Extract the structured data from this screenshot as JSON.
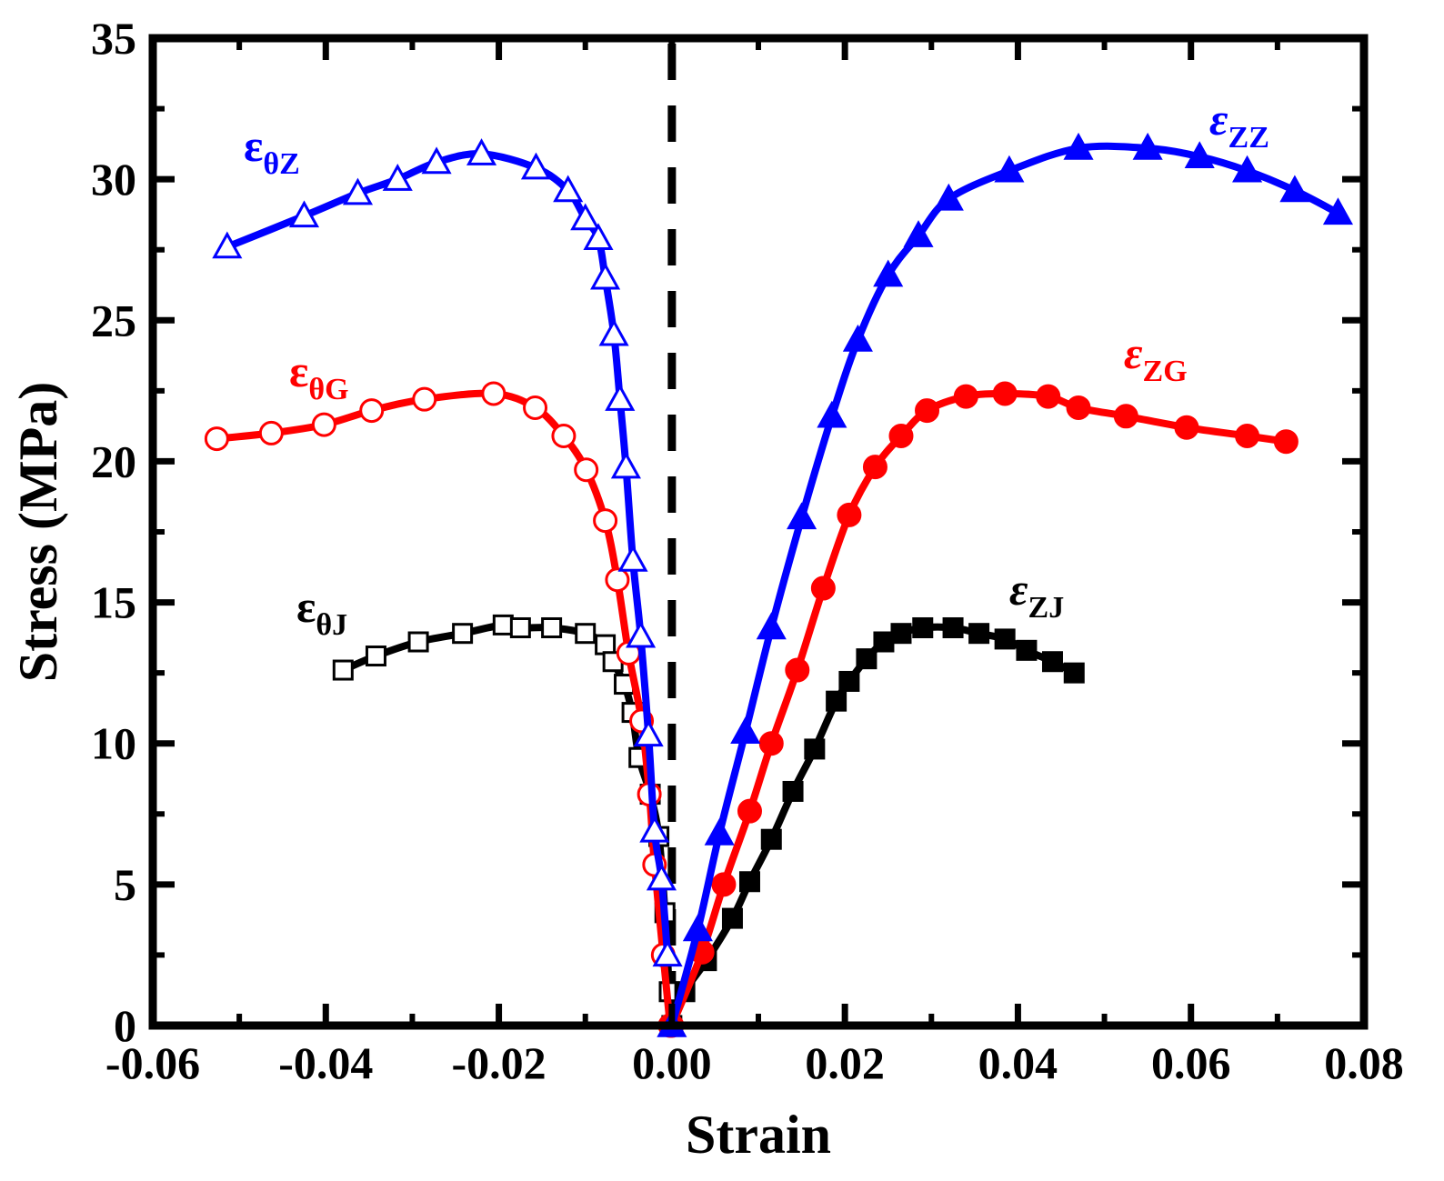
{
  "chart_data": {
    "type": "line",
    "title": "",
    "xlabel": "Strain",
    "ylabel": "Stress (MPa)",
    "xlim": [
      -0.06,
      0.08
    ],
    "ylim": [
      0,
      35
    ],
    "xticks": [
      "-0.06",
      "-0.04",
      "-0.02",
      "0.00",
      "0.02",
      "0.04",
      "0.06",
      "0.08"
    ],
    "yticks": [
      "0",
      "5",
      "10",
      "15",
      "20",
      "25",
      "30",
      "35"
    ],
    "grid": false,
    "reference_line": {
      "x": 0,
      "style": "dashed",
      "color": "#000000"
    },
    "series": [
      {
        "name": "εθZ",
        "label_main": "ε",
        "label_sub": "θZ",
        "color": "#0000ff",
        "marker": "triangle",
        "filled": false,
        "x": [
          -0.0514,
          -0.0425,
          -0.0363,
          -0.0317,
          -0.0272,
          -0.022,
          -0.0157,
          -0.012,
          -0.01,
          -0.0085,
          -0.0077,
          -0.0067,
          -0.006,
          -0.0053,
          -0.0045,
          -0.0036,
          -0.0027,
          -0.002,
          -0.0012,
          -0.0005
        ],
        "y": [
          27.6,
          28.7,
          29.5,
          30.0,
          30.6,
          30.9,
          30.4,
          29.6,
          28.6,
          27.9,
          26.5,
          24.5,
          22.2,
          19.8,
          16.5,
          13.8,
          10.3,
          6.9,
          5.2,
          2.5
        ]
      },
      {
        "name": "εθG",
        "label_main": "ε",
        "label_sub": "θG",
        "color": "#ff0000",
        "marker": "circle",
        "filled": false,
        "x": [
          -0.0526,
          -0.0463,
          -0.0402,
          -0.0347,
          -0.0286,
          -0.0206,
          -0.0158,
          -0.0125,
          -0.0099,
          -0.0077,
          -0.0063,
          -0.005,
          -0.0035,
          -0.0026,
          -0.002,
          -0.001,
          -0.0002
        ],
        "y": [
          20.8,
          21.0,
          21.3,
          21.8,
          22.2,
          22.4,
          21.9,
          20.9,
          19.7,
          17.9,
          15.8,
          13.2,
          10.8,
          8.2,
          5.7,
          2.5,
          0.0
        ]
      },
      {
        "name": "εθJ",
        "label_main": "ε",
        "label_sub": "θJ",
        "color": "#000000",
        "marker": "square",
        "filled": false,
        "x": [
          -0.038,
          -0.0342,
          -0.0293,
          -0.0242,
          -0.0195,
          -0.0175,
          -0.0139,
          -0.01,
          -0.0077,
          -0.0068,
          -0.0055,
          -0.0046,
          -0.0038,
          -0.0025,
          -0.0015,
          -0.0008,
          -0.0003
        ],
        "y": [
          12.6,
          13.1,
          13.6,
          13.9,
          14.2,
          14.1,
          14.1,
          13.9,
          13.5,
          12.9,
          12.1,
          11.1,
          9.5,
          8.2,
          6.7,
          4.0,
          1.2
        ]
      },
      {
        "name": "εZZ",
        "label_main": "ε",
        "label_sub": "ZZ",
        "color": "#0000ff",
        "marker": "triangle",
        "filled": true,
        "x": [
          0.0,
          0.003,
          0.0055,
          0.0085,
          0.0115,
          0.015,
          0.0185,
          0.0215,
          0.025,
          0.0285,
          0.032,
          0.039,
          0.047,
          0.055,
          0.061,
          0.0665,
          0.072,
          0.077
        ],
        "y": [
          0.0,
          3.4,
          6.8,
          10.4,
          14.1,
          18.0,
          21.6,
          24.3,
          26.6,
          28.0,
          29.3,
          30.3,
          31.1,
          31.1,
          30.8,
          30.3,
          29.6,
          28.8
        ]
      },
      {
        "name": "εZG",
        "label_main": "ε",
        "label_sub": "ZG",
        "color": "#ff0000",
        "marker": "circle",
        "filled": true,
        "x": [
          0.0,
          0.0035,
          0.006,
          0.009,
          0.0115,
          0.0145,
          0.0175,
          0.0205,
          0.0235,
          0.0265,
          0.0295,
          0.034,
          0.0385,
          0.0435,
          0.047,
          0.0525,
          0.0595,
          0.0665,
          0.071
        ],
        "y": [
          0.0,
          2.6,
          5.0,
          7.6,
          10.0,
          12.6,
          15.5,
          18.1,
          19.8,
          20.9,
          21.8,
          22.3,
          22.4,
          22.3,
          21.9,
          21.6,
          21.2,
          20.9,
          20.7
        ]
      },
      {
        "name": "εZJ",
        "label_main": "ε",
        "label_sub": "ZJ",
        "color": "#000000",
        "marker": "square",
        "filled": true,
        "x": [
          0.0,
          0.0015,
          0.004,
          0.007,
          0.009,
          0.0115,
          0.014,
          0.0165,
          0.019,
          0.0205,
          0.0225,
          0.0245,
          0.0265,
          0.029,
          0.0325,
          0.0355,
          0.0385,
          0.041,
          0.044,
          0.0465
        ],
        "y": [
          0.0,
          1.2,
          2.3,
          3.8,
          5.1,
          6.6,
          8.3,
          9.8,
          11.5,
          12.2,
          13.0,
          13.6,
          13.9,
          14.1,
          14.1,
          13.9,
          13.7,
          13.3,
          12.9,
          12.5
        ]
      }
    ]
  }
}
